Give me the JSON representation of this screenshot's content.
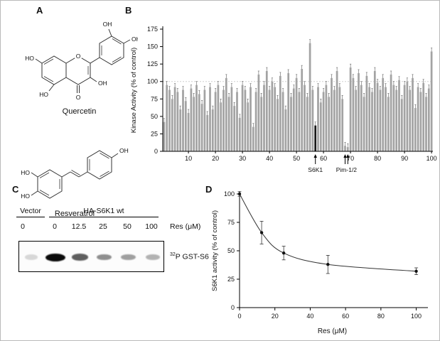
{
  "panels": {
    "a": {
      "label": "A",
      "molecules": [
        {
          "name": "Quercetin",
          "atom_labels": [
            "HO",
            "HO",
            "O",
            "O",
            "OH",
            "OH",
            "OH"
          ]
        },
        {
          "name": "Resveratrol",
          "atom_labels": [
            "HO",
            "HO",
            "OH"
          ]
        }
      ]
    },
    "b": {
      "label": "B"
    },
    "c": {
      "label": "C",
      "group_labels": [
        "Vector",
        "HA-S6K1 wt"
      ],
      "doses": [
        "0",
        "0",
        "12.5",
        "25",
        "50",
        "100"
      ],
      "dose_unit": "Res (μM)",
      "band_label_sup": "32",
      "band_label_text": "P GST-S6",
      "bands": [
        {
          "lane": 1,
          "intensity": 0.15
        },
        {
          "lane": 2,
          "intensity": 1.0
        },
        {
          "lane": 3,
          "intensity": 0.65
        },
        {
          "lane": 4,
          "intensity": 0.45
        },
        {
          "lane": 5,
          "intensity": 0.38
        },
        {
          "lane": 6,
          "intensity": 0.3
        }
      ]
    },
    "d": {
      "label": "D"
    }
  },
  "chart_data": [
    {
      "panel": "B",
      "type": "bar",
      "title": "",
      "xlabel": "",
      "ylabel": "Kinase Activity (% of control)",
      "ylim": [
        0,
        175
      ],
      "yticks": [
        0,
        25,
        50,
        75,
        100,
        125,
        150,
        175
      ],
      "xticks": [
        10,
        20,
        30,
        40,
        50,
        60,
        70,
        80,
        90,
        100
      ],
      "reference_line": 100,
      "error": 5,
      "highlight_bars": [
        57
      ],
      "annotations": [
        {
          "label": "S6K1",
          "bars": [
            57
          ]
        },
        {
          "label": "Pim-1/2",
          "bars": [
            68,
            69
          ]
        }
      ],
      "values": [
        42,
        95,
        88,
        75,
        92,
        85,
        60,
        88,
        72,
        55,
        90,
        78,
        95,
        82,
        68,
        88,
        52,
        92,
        60,
        85,
        95,
        70,
        88,
        105,
        78,
        92,
        65,
        85,
        48,
        95,
        88,
        70,
        92,
        35,
        85,
        110,
        78,
        95,
        115,
        88,
        100,
        92,
        75,
        108,
        85,
        60,
        112,
        78,
        90,
        105,
        85,
        118,
        95,
        78,
        155,
        88,
        37,
        92,
        70,
        85,
        95,
        78,
        105,
        88,
        115,
        92,
        75,
        8,
        6,
        120,
        105,
        88,
        112,
        95,
        78,
        108,
        92,
        85,
        115,
        98,
        88,
        105,
        92,
        78,
        110,
        95,
        88,
        102,
        75,
        95,
        100,
        88,
        105,
        62,
        92,
        85,
        98,
        78,
        90,
        143
      ]
    },
    {
      "panel": "D",
      "type": "scatter",
      "x": [
        0,
        12.5,
        25,
        50,
        100
      ],
      "y": [
        100,
        66,
        48,
        38,
        32
      ],
      "yerr": [
        2,
        10,
        6,
        8,
        3
      ],
      "xlabel": "Res (μM)",
      "ylabel": "S6K1 activity (% of control)",
      "xlim": [
        0,
        105
      ],
      "ylim": [
        0,
        100
      ],
      "xticks": [
        0,
        20,
        40,
        60,
        80,
        100
      ],
      "yticks": [
        0,
        25,
        50,
        75,
        100
      ],
      "curve": "smooth-decay"
    }
  ]
}
